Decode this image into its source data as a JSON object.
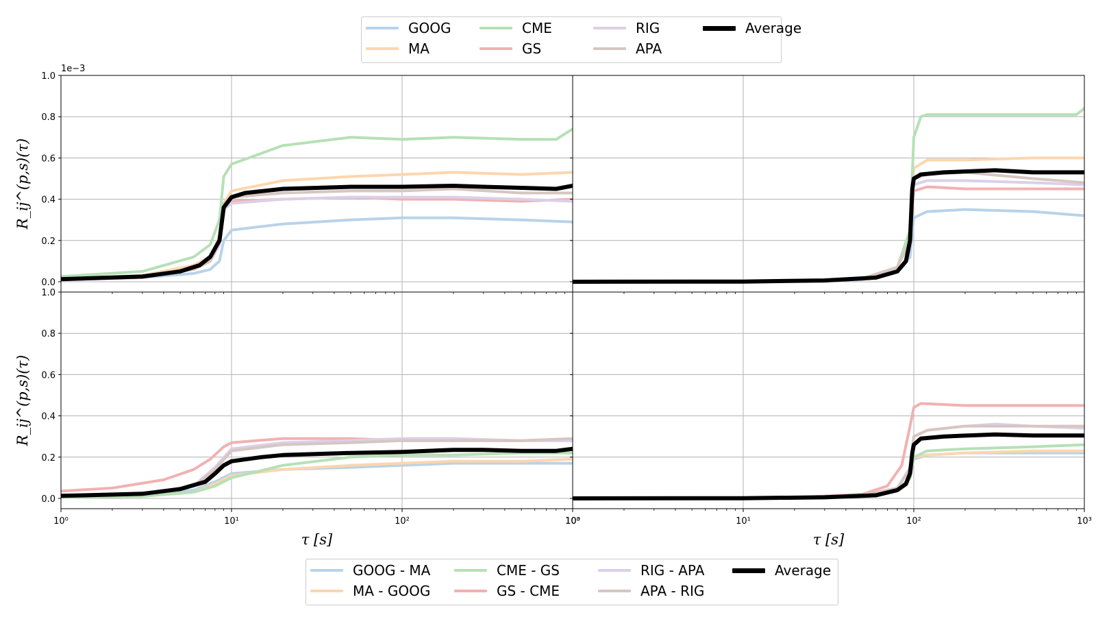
{
  "chart_data": {
    "type": "line",
    "xlabel": "τ [s]",
    "ylabel": "R_ij^(p,s)(τ)",
    "scale_note": "1e−3",
    "x_scale": "log",
    "xlim": [
      1,
      1000
    ],
    "ylim": [
      -0.05,
      1.0
    ],
    "grid": true,
    "x_ticks": [
      1,
      10,
      100,
      1000
    ],
    "y_ticks": [
      0.0,
      0.2,
      0.4,
      0.6,
      0.8,
      1.0
    ],
    "colors": {
      "blue": "#b8d3e8",
      "orange": "#fdd6ae",
      "green": "#b6e0b6",
      "red": "#f2b1b2",
      "purple": "#dccfe8",
      "brown": "#d6c6c2",
      "average": "#000000"
    },
    "legend_top": [
      "GOOG",
      "MA",
      "CME",
      "GS",
      "RIG",
      "APA",
      "Average"
    ],
    "legend_bottom": [
      "GOOG - MA",
      "MA - GOOG",
      "CME - GS",
      "GS - CME",
      "RIG - APA",
      "APA - RIG",
      "Average"
    ],
    "panels": [
      {
        "position": "top-left",
        "series": [
          {
            "name": "GOOG",
            "color": "blue",
            "x": [
              1,
              3,
              6,
              7.5,
              8.5,
              9,
              10,
              20,
              50,
              100,
              200,
              500,
              1000
            ],
            "y": [
              0.01,
              0.02,
              0.04,
              0.06,
              0.1,
              0.2,
              0.25,
              0.28,
              0.3,
              0.31,
              0.31,
              0.3,
              0.29
            ]
          },
          {
            "name": "MA",
            "color": "orange",
            "x": [
              1,
              3,
              6,
              7.5,
              8.5,
              9,
              10,
              20,
              50,
              100,
              200,
              500,
              1000
            ],
            "y": [
              0.015,
              0.03,
              0.08,
              0.12,
              0.22,
              0.38,
              0.44,
              0.49,
              0.51,
              0.52,
              0.53,
              0.52,
              0.53
            ]
          },
          {
            "name": "CME",
            "color": "green",
            "x": [
              1,
              3,
              6,
              7.5,
              8.5,
              9,
              10,
              20,
              50,
              100,
              200,
              500,
              800,
              1000
            ],
            "y": [
              0.025,
              0.05,
              0.12,
              0.18,
              0.3,
              0.51,
              0.57,
              0.66,
              0.7,
              0.69,
              0.7,
              0.69,
              0.69,
              0.74
            ]
          },
          {
            "name": "GS",
            "color": "red",
            "x": [
              1,
              3,
              6,
              7.5,
              8.5,
              9,
              10,
              20,
              50,
              100,
              200,
              500,
              1000
            ],
            "y": [
              0.01,
              0.02,
              0.06,
              0.1,
              0.18,
              0.36,
              0.39,
              0.4,
              0.41,
              0.4,
              0.4,
              0.39,
              0.4
            ]
          },
          {
            "name": "RIG",
            "color": "purple",
            "x": [
              1,
              3,
              6,
              7.5,
              8.5,
              9,
              10,
              20,
              50,
              100,
              200,
              500,
              1000
            ],
            "y": [
              0.01,
              0.02,
              0.06,
              0.1,
              0.18,
              0.35,
              0.38,
              0.4,
              0.41,
              0.41,
              0.41,
              0.4,
              0.39
            ]
          },
          {
            "name": "APA",
            "color": "brown",
            "x": [
              1,
              3,
              6,
              7.5,
              8.5,
              9,
              10,
              20,
              50,
              100,
              200,
              500,
              1000
            ],
            "y": [
              0.01,
              0.02,
              0.06,
              0.1,
              0.2,
              0.38,
              0.41,
              0.43,
              0.44,
              0.44,
              0.45,
              0.43,
              0.43
            ]
          },
          {
            "name": "Average",
            "color": "average",
            "x": [
              1,
              3,
              5,
              6.5,
              7.5,
              8.5,
              9,
              10,
              12,
              20,
              50,
              100,
              200,
              300,
              500,
              800,
              1000
            ],
            "y": [
              0.012,
              0.025,
              0.05,
              0.08,
              0.12,
              0.2,
              0.36,
              0.41,
              0.43,
              0.45,
              0.46,
              0.46,
              0.465,
              0.46,
              0.455,
              0.45,
              0.465
            ]
          }
        ]
      },
      {
        "position": "top-right",
        "series": [
          {
            "name": "GOOG",
            "color": "blue",
            "x": [
              1,
              20,
              50,
              80,
              95,
              100,
              120,
              200,
              500,
              1000
            ],
            "y": [
              0.0,
              0.002,
              0.01,
              0.05,
              0.12,
              0.31,
              0.34,
              0.35,
              0.34,
              0.32
            ]
          },
          {
            "name": "MA",
            "color": "orange",
            "x": [
              1,
              20,
              50,
              80,
              95,
              100,
              120,
              200,
              500,
              1000
            ],
            "y": [
              0.0,
              0.003,
              0.015,
              0.07,
              0.2,
              0.55,
              0.59,
              0.59,
              0.6,
              0.6
            ]
          },
          {
            "name": "CME",
            "color": "green",
            "x": [
              1,
              20,
              50,
              80,
              95,
              100,
              110,
              120,
              200,
              500,
              900,
              1000
            ],
            "y": [
              0.0,
              0.003,
              0.015,
              0.07,
              0.25,
              0.7,
              0.8,
              0.81,
              0.81,
              0.81,
              0.81,
              0.84
            ]
          },
          {
            "name": "GS",
            "color": "red",
            "x": [
              1,
              20,
              50,
              80,
              95,
              100,
              120,
              200,
              500,
              1000
            ],
            "y": [
              0.0,
              0.003,
              0.015,
              0.07,
              0.2,
              0.44,
              0.46,
              0.45,
              0.45,
              0.45
            ]
          },
          {
            "name": "RIG",
            "color": "purple",
            "x": [
              1,
              20,
              50,
              80,
              95,
              100,
              120,
              200,
              500,
              1000
            ],
            "y": [
              0.0,
              0.003,
              0.015,
              0.07,
              0.2,
              0.47,
              0.49,
              0.49,
              0.48,
              0.47
            ]
          },
          {
            "name": "APA",
            "color": "brown",
            "x": [
              1,
              20,
              50,
              80,
              95,
              100,
              120,
              200,
              500,
              1000
            ],
            "y": [
              0.0,
              0.003,
              0.015,
              0.07,
              0.2,
              0.5,
              0.52,
              0.53,
              0.5,
              0.48
            ]
          },
          {
            "name": "Average",
            "color": "average",
            "x": [
              1,
              10,
              30,
              60,
              80,
              90,
              95,
              98,
              100,
              110,
              150,
              300,
              500,
              1000
            ],
            "y": [
              0.0,
              0.001,
              0.006,
              0.02,
              0.05,
              0.1,
              0.2,
              0.45,
              0.5,
              0.52,
              0.53,
              0.54,
              0.53,
              0.53
            ]
          }
        ]
      },
      {
        "position": "bottom-left",
        "series": [
          {
            "name": "GOOG - MA",
            "color": "blue",
            "x": [
              1,
              3,
              6,
              8,
              10,
              20,
              50,
              100,
              200,
              500,
              1000
            ],
            "y": [
              0.01,
              0.015,
              0.04,
              0.08,
              0.12,
              0.14,
              0.15,
              0.16,
              0.17,
              0.17,
              0.17
            ]
          },
          {
            "name": "MA - GOOG",
            "color": "orange",
            "x": [
              1,
              3,
              6,
              8,
              10,
              20,
              50,
              100,
              200,
              500,
              1000
            ],
            "y": [
              0.005,
              0.01,
              0.03,
              0.07,
              0.11,
              0.14,
              0.16,
              0.17,
              0.18,
              0.18,
              0.19
            ]
          },
          {
            "name": "CME - GS",
            "color": "green",
            "x": [
              1,
              3,
              6,
              8,
              10,
              20,
              50,
              100,
              200,
              500,
              1000
            ],
            "y": [
              0.005,
              0.01,
              0.03,
              0.06,
              0.1,
              0.16,
              0.2,
              0.21,
              0.21,
              0.22,
              0.22
            ]
          },
          {
            "name": "GS - CME",
            "color": "red",
            "x": [
              1,
              2,
              4,
              6,
              7.5,
              9,
              10,
              20,
              50,
              100,
              200,
              500,
              1000
            ],
            "y": [
              0.035,
              0.05,
              0.09,
              0.14,
              0.19,
              0.25,
              0.27,
              0.29,
              0.29,
              0.28,
              0.28,
              0.28,
              0.28
            ]
          },
          {
            "name": "RIG - APA",
            "color": "purple",
            "x": [
              1,
              3,
              6,
              8,
              10,
              20,
              50,
              100,
              200,
              500,
              1000
            ],
            "y": [
              0.01,
              0.02,
              0.06,
              0.15,
              0.24,
              0.27,
              0.28,
              0.29,
              0.29,
              0.28,
              0.28
            ]
          },
          {
            "name": "APA - RIG",
            "color": "brown",
            "x": [
              1,
              3,
              6,
              8,
              10,
              20,
              50,
              100,
              200,
              500,
              1000
            ],
            "y": [
              0.01,
              0.02,
              0.06,
              0.14,
              0.23,
              0.26,
              0.27,
              0.28,
              0.28,
              0.28,
              0.29
            ]
          },
          {
            "name": "Average",
            "color": "average",
            "x": [
              1,
              3,
              5,
              7,
              8,
              9,
              10,
              15,
              20,
              50,
              100,
              200,
              300,
              500,
              800,
              1000
            ],
            "y": [
              0.012,
              0.022,
              0.045,
              0.08,
              0.12,
              0.16,
              0.18,
              0.2,
              0.21,
              0.22,
              0.225,
              0.235,
              0.235,
              0.23,
              0.23,
              0.24
            ]
          }
        ]
      },
      {
        "position": "bottom-right",
        "series": [
          {
            "name": "GOOG - MA",
            "color": "blue",
            "x": [
              1,
              20,
              50,
              80,
              95,
              100,
              120,
              200,
              500,
              1000
            ],
            "y": [
              0.0,
              0.002,
              0.01,
              0.04,
              0.1,
              0.19,
              0.21,
              0.22,
              0.22,
              0.22
            ]
          },
          {
            "name": "MA - GOOG",
            "color": "orange",
            "x": [
              1,
              20,
              50,
              80,
              95,
              100,
              120,
              200,
              500,
              1000
            ],
            "y": [
              0.0,
              0.002,
              0.01,
              0.04,
              0.1,
              0.2,
              0.21,
              0.22,
              0.23,
              0.23
            ]
          },
          {
            "name": "CME - GS",
            "color": "green",
            "x": [
              1,
              20,
              50,
              80,
              95,
              100,
              120,
              200,
              500,
              1000
            ],
            "y": [
              0.0,
              0.002,
              0.01,
              0.04,
              0.1,
              0.2,
              0.23,
              0.24,
              0.25,
              0.26
            ]
          },
          {
            "name": "GS - CME",
            "color": "red",
            "x": [
              1,
              20,
              50,
              70,
              85,
              95,
              100,
              110,
              200,
              500,
              1000
            ],
            "y": [
              0.0,
              0.004,
              0.02,
              0.06,
              0.16,
              0.35,
              0.44,
              0.46,
              0.45,
              0.45,
              0.45
            ]
          },
          {
            "name": "RIG - APA",
            "color": "purple",
            "x": [
              1,
              20,
              50,
              80,
              95,
              100,
              120,
              200,
              300,
              500,
              1000
            ],
            "y": [
              0.0,
              0.003,
              0.015,
              0.05,
              0.15,
              0.3,
              0.33,
              0.35,
              0.36,
              0.35,
              0.34
            ]
          },
          {
            "name": "APA - RIG",
            "color": "brown",
            "x": [
              1,
              20,
              50,
              80,
              95,
              100,
              120,
              200,
              500,
              1000
            ],
            "y": [
              0.0,
              0.003,
              0.015,
              0.05,
              0.14,
              0.3,
              0.33,
              0.35,
              0.35,
              0.35
            ]
          },
          {
            "name": "Average",
            "color": "average",
            "x": [
              1,
              10,
              30,
              60,
              80,
              90,
              95,
              98,
              100,
              110,
              150,
              300,
              500,
              1000
            ],
            "y": [
              0.0,
              0.001,
              0.005,
              0.015,
              0.04,
              0.07,
              0.12,
              0.22,
              0.26,
              0.29,
              0.3,
              0.31,
              0.305,
              0.305
            ]
          }
        ]
      }
    ]
  }
}
